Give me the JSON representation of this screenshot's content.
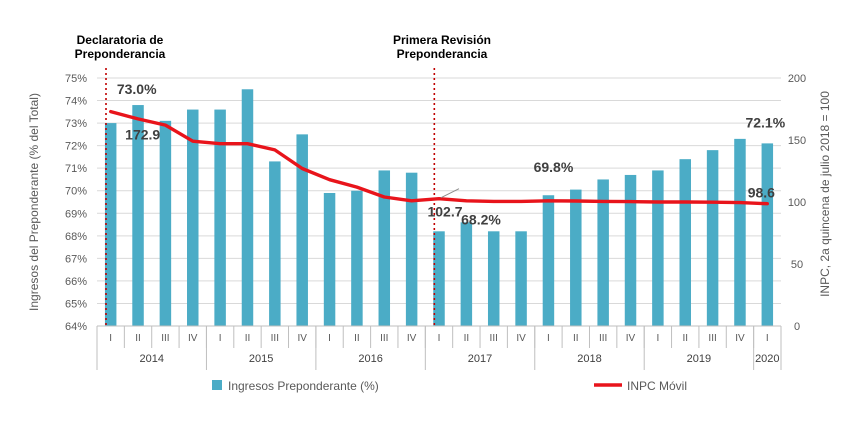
{
  "chart_data": {
    "type": "bar",
    "categories": [
      "I",
      "II",
      "III",
      "IV",
      "I",
      "II",
      "III",
      "IV",
      "I",
      "II",
      "III",
      "IV",
      "I",
      "II",
      "III",
      "IV",
      "I",
      "II",
      "III",
      "IV",
      "I",
      "II",
      "III",
      "IV",
      "I"
    ],
    "years": [
      {
        "label": "2014",
        "quarters": 4
      },
      {
        "label": "2015",
        "quarters": 4
      },
      {
        "label": "2016",
        "quarters": 4
      },
      {
        "label": "2017",
        "quarters": 4
      },
      {
        "label": "2018",
        "quarters": 4
      },
      {
        "label": "2019",
        "quarters": 4
      },
      {
        "label": "2020",
        "quarters": 1
      }
    ],
    "series": [
      {
        "name": "Ingresos Preponderante (%)",
        "axis": "left",
        "color": "#4BACC6",
        "values": [
          73.0,
          73.8,
          73.1,
          73.6,
          73.6,
          74.5,
          71.3,
          72.5,
          69.9,
          70.0,
          70.9,
          70.8,
          68.2,
          68.6,
          68.2,
          68.2,
          69.8,
          70.05,
          70.5,
          70.7,
          70.9,
          71.4,
          71.8,
          72.3,
          72.1
        ]
      },
      {
        "name": "INPC Móvil",
        "axis": "right",
        "color": "#E8141B",
        "values": [
          172.9,
          167,
          162,
          149,
          147,
          147,
          142,
          127,
          118,
          112,
          104,
          101,
          102.7,
          101,
          100.5,
          100.5,
          101,
          100.8,
          100.5,
          100.3,
          100,
          100,
          99.8,
          99.5,
          98.6
        ]
      }
    ],
    "y_left": {
      "label": "Ingresos del Preponderante (% del Total)",
      "ticks": [
        "64%",
        "65%",
        "66%",
        "67%",
        "68%",
        "69%",
        "70%",
        "71%",
        "72%",
        "73%",
        "74%",
        "75%"
      ],
      "range": [
        64,
        75
      ]
    },
    "y_right": {
      "label": "INPC, 2a quincena de julio 2018 = 100",
      "ticks": [
        "0",
        "50",
        "100",
        "150",
        "200"
      ],
      "range": [
        0,
        200
      ]
    },
    "data_labels": [
      {
        "text": "73.0%",
        "index": 0,
        "series": 0
      },
      {
        "text": "172.9",
        "index": 0,
        "series": 1
      },
      {
        "text": "102.7",
        "index": 12,
        "series": 1
      },
      {
        "text": "68.2%",
        "index": 12,
        "series": 0
      },
      {
        "text": "69.8%",
        "index": 16,
        "series": 0
      },
      {
        "text": "72.1%",
        "index": 24,
        "series": 0
      },
      {
        "text": "98.6",
        "index": 24,
        "series": 1
      }
    ],
    "markers": [
      {
        "label": "Declaratoria de\nPreponderancia",
        "index": 0
      },
      {
        "label": "Primera Revisión\nPreponderancia",
        "index": 12
      }
    ],
    "legend": {
      "placement": "bottom",
      "items": [
        {
          "label": "Ingresos Preponderante (%)",
          "type": "box",
          "color": "#4BACC6"
        },
        {
          "label": "INPC Móvil",
          "type": "line",
          "color": "#E8141B"
        }
      ]
    },
    "grid": "horizontal",
    "marker_color": "#C00000"
  }
}
